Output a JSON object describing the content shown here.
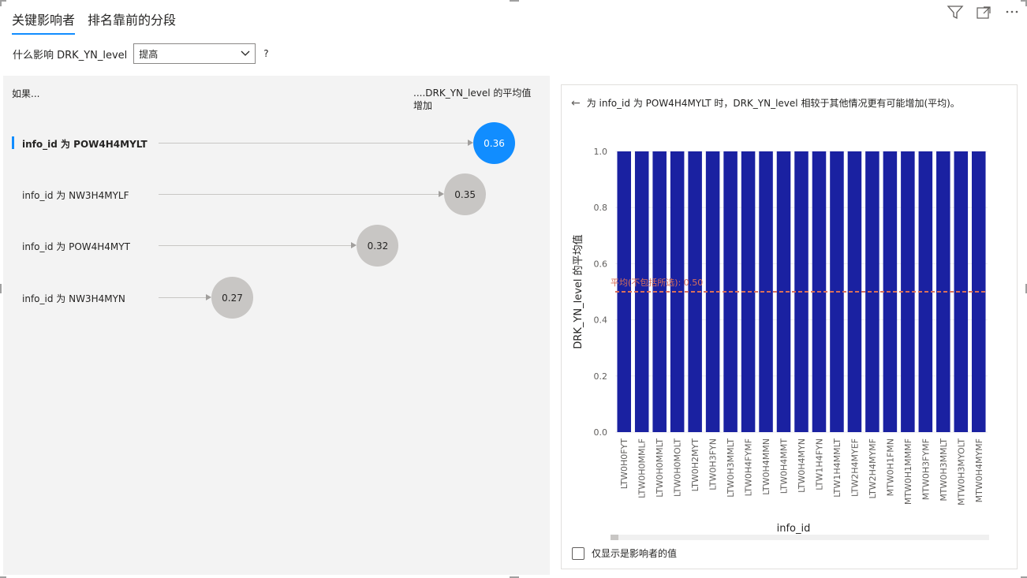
{
  "tabs": [
    {
      "label": "关键影响者",
      "active": true
    },
    {
      "label": "排名靠前的分段",
      "active": false
    }
  ],
  "filter": {
    "question": "什么影响 DRK_YN_level",
    "selected": "提高",
    "help": "?"
  },
  "left": {
    "col_left": "如果...",
    "col_right": "....DRK_YN_level 的平均值增加",
    "influencers": [
      {
        "label": "info_id 为 POW4H4MYLT",
        "value": "0.36",
        "num": 0.36,
        "active": true
      },
      {
        "label": "info_id 为 NW3H4MYLF",
        "value": "0.35",
        "num": 0.35,
        "active": false
      },
      {
        "label": "info_id 为 POW4H4MYT",
        "value": "0.32",
        "num": 0.32,
        "active": false
      },
      {
        "label": "info_id 为 NW3H4MYN",
        "value": "0.27",
        "num": 0.27,
        "active": false
      }
    ]
  },
  "card": {
    "header": "为 info_id 为 POW4H4MYLT 时，DRK_YN_level 相较于其他情况更有可能增加(平均)。",
    "checkbox_label": "仅显示是影响者的值"
  },
  "colors": {
    "accent": "#118dff",
    "bar": "#1a21a1",
    "ref_line": "#d9705a",
    "bubble_gray": "#c8c6c4"
  },
  "chart_data": {
    "type": "bar",
    "title": "",
    "xlabel": "info_id",
    "ylabel": "DRK_YN_level 的平均值",
    "ylim": [
      0,
      1
    ],
    "yticks": [
      "0.0",
      "0.2",
      "0.4",
      "0.6",
      "0.8",
      "1.0"
    ],
    "categories": [
      "LTW0H0FYT",
      "LTW0H0MMLF",
      "LTW0H0MMLT",
      "LTW0H0MOLT",
      "LTW0H2MYT",
      "LTW0H3FYN",
      "LTW0H3MMLT",
      "LTW0H4FYMF",
      "LTW0H4MMN",
      "LTW0H4MMT",
      "LTW0H4MYN",
      "LTW1H4FYN",
      "LTW1H4MMLT",
      "LTW2H4MYEF",
      "LTW2H4MYMF",
      "MTW0H1FMN",
      "MTW0H1MMMF",
      "MTW0H3FYMF",
      "MTW0H3MMLT",
      "MTW0H3MYOLT",
      "MTW0H4MYMF"
    ],
    "values": [
      1,
      1,
      1,
      1,
      1,
      1,
      1,
      1,
      1,
      1,
      1,
      1,
      1,
      1,
      1,
      1,
      1,
      1,
      1,
      1,
      1
    ],
    "reference_line": {
      "label": "平均(不包括所选): 0.50",
      "value": 0.5
    }
  }
}
